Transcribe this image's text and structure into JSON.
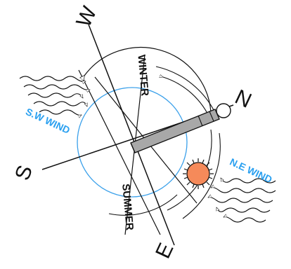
{
  "compass": {
    "north": "N",
    "east": "E",
    "south": "S",
    "west": "W"
  },
  "seasons": {
    "winter": "WINTER",
    "summer": "SUMMER"
  },
  "winds": {
    "southwest": "S.W WIND",
    "northeast": "N.E WIND"
  },
  "colors": {
    "wind_label": "#2aa0f0",
    "orbit_circle": "#3aa0ea",
    "sun_fill": "#f58a5a",
    "building_fill": "#a8a8a8",
    "line": "#111111"
  }
}
